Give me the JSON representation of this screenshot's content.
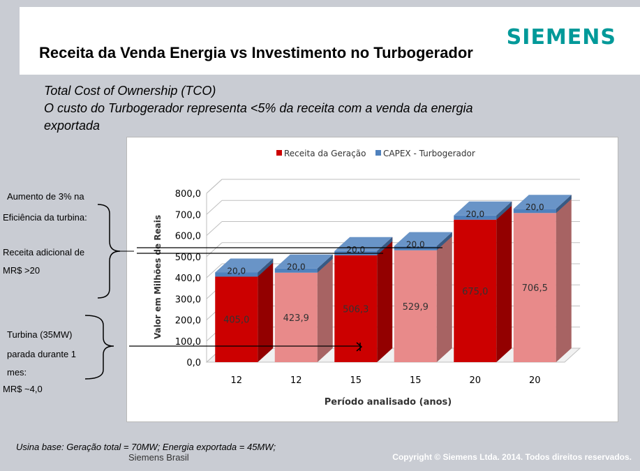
{
  "brand": {
    "logo_text": "SIEMENS",
    "color": "#009999"
  },
  "header": {
    "title": "Receita da Venda Energia vs Investimento no Turbogerador"
  },
  "subtitle": {
    "line1": "Total Cost of Ownership (TCO)",
    "line2": "O custo do Turbogerador representa <5% da receita com a venda da energia",
    "line3": "exportada"
  },
  "annotations": {
    "group1": [
      "Aumento de 3% na",
      "Eficiência da turbina:",
      "Receita adicional de",
      "MR$ >20"
    ],
    "group2": [
      "Turbina (35MW)",
      "parada durante 1",
      "mes:",
      "MR$ ~4,0"
    ]
  },
  "footer": {
    "note": "Usina base: Geração total = 70MW; Energia exportada = 45MW;",
    "org": "Siemens Brasil",
    "copyright": "Copyright © Siemens Ltda. 2014. Todos direitos reservados."
  },
  "chart_data": {
    "type": "bar",
    "stacked": true,
    "categories": [
      "12",
      "12",
      "15",
      "15",
      "20",
      "20"
    ],
    "series": [
      {
        "name": "Receita da Geração",
        "values": [
          405.0,
          423.9,
          506.3,
          529.9,
          675.0,
          706.5
        ],
        "value_labels": [
          "405,0",
          "423,9",
          "506,3",
          "529,9",
          "675,0",
          "706,5"
        ]
      },
      {
        "name": "CAPEX - Turbogerador",
        "values": [
          20.0,
          20.0,
          20.0,
          20.0,
          20.0,
          20.0
        ],
        "value_labels": [
          "20,0",
          "20,0",
          "20,0",
          "20,0",
          "20,0",
          "20,0"
        ]
      }
    ],
    "bar_colors": [
      "#cc0000",
      "#e88a8a",
      "#cc0000",
      "#e88a8a",
      "#cc0000",
      "#e88a8a"
    ],
    "capex_color": "#4f81bd",
    "xlabel": "Período analisado (anos)",
    "ylabel": "Valor em Milhões de Reais",
    "ylim": [
      0,
      800
    ],
    "yticks": [
      "0,0",
      "100,0",
      "200,0",
      "300,0",
      "400,0",
      "500,0",
      "600,0",
      "700,0",
      "800,0"
    ],
    "legend_position": "top",
    "grid": true
  }
}
